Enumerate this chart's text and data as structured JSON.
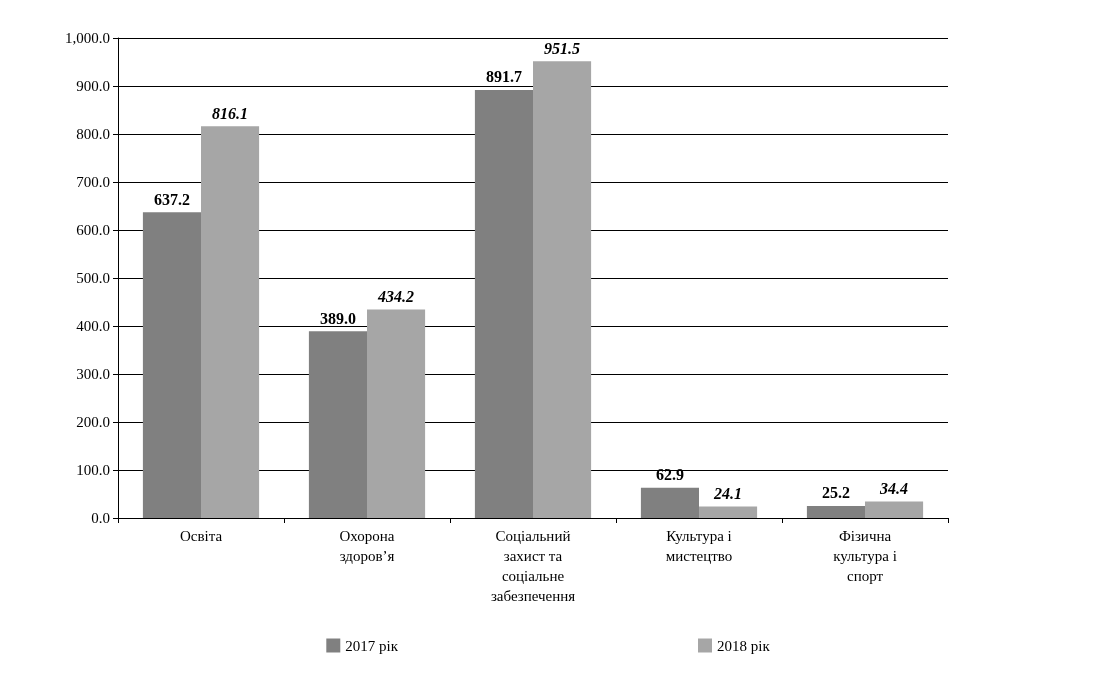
{
  "chart_data": {
    "type": "bar",
    "categories": [
      "Освіта",
      "Охорона\nздоров’я",
      "Соціальний\nзахист та\nсоціальне\nзабезпечення",
      "Культура і\nмистецтво",
      "Фізична\nкультура і\nспорт"
    ],
    "series": [
      {
        "name": "2017 рік",
        "color": "#808080",
        "values": [
          637.2,
          389.0,
          891.7,
          62.9,
          25.2
        ]
      },
      {
        "name": "2018 рік",
        "color": "#a6a6a6",
        "values": [
          816.1,
          434.2,
          951.5,
          24.1,
          34.4
        ]
      }
    ],
    "value_labels": [
      [
        "637.2",
        "389.0",
        "891.7",
        "62.9",
        "25.2"
      ],
      [
        "816.1",
        "434.2",
        "951.5",
        "24.1",
        "34.4"
      ]
    ],
    "ylim": [
      0,
      1000
    ],
    "yticks": [
      {
        "value": 0,
        "label": "0.0"
      },
      {
        "value": 100,
        "label": "100.0"
      },
      {
        "value": 200,
        "label": "200.0"
      },
      {
        "value": 300,
        "label": "300.0"
      },
      {
        "value": 400,
        "label": "400.0"
      },
      {
        "value": 500,
        "label": "500.0"
      },
      {
        "value": 600,
        "label": "600.0"
      },
      {
        "value": 700,
        "label": "700.0"
      },
      {
        "value": 800,
        "label": "800.0"
      },
      {
        "value": 900,
        "label": "900.0"
      },
      {
        "value": 1000,
        "label": "1,000.0"
      }
    ],
    "grid": "y",
    "legend": "bottom"
  }
}
